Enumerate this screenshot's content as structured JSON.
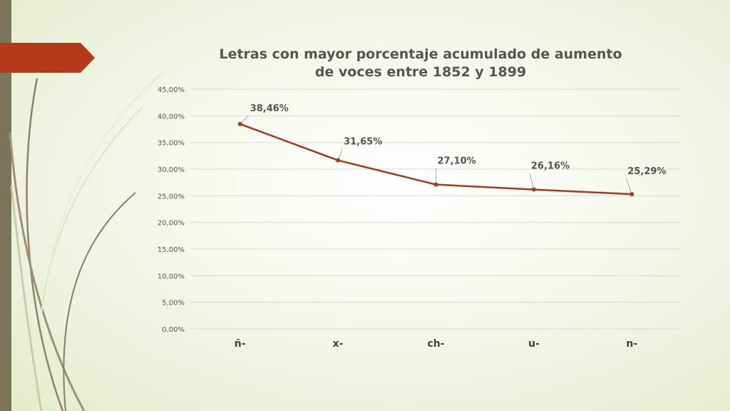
{
  "colors": {
    "line": "#a83a1c",
    "slide_accent": "#b03a1a",
    "left_bar": "#7a7558",
    "gridline": "#d9d9d9",
    "label": "#555555"
  },
  "slide": {
    "title": "Letras con mayor porcentaje acumulado de aumento de voces entre 1852 y 1899"
  },
  "chart_data": {
    "type": "line",
    "title": "Letras con mayor porcentaje acumulado de aumento de voces entre 1852 y 1899",
    "xlabel": "",
    "ylabel": "",
    "categories": [
      "ñ-",
      "x-",
      "ch-",
      "u-",
      "n-"
    ],
    "series": [
      {
        "values": [
          38.46,
          31.65,
          27.1,
          26.16,
          25.29
        ],
        "data_labels": [
          "38,46%",
          "31,65%",
          "27,10%",
          "26,16%",
          "25,29%"
        ]
      }
    ],
    "ylim": [
      0,
      45
    ],
    "y_ticks": [
      0,
      5,
      10,
      15,
      20,
      25,
      30,
      35,
      40,
      45
    ],
    "y_tick_labels": [
      "0,00%",
      "5,00%",
      "10,00%",
      "15,00%",
      "20,00%",
      "25,00%",
      "30,00%",
      "35,00%",
      "40,00%",
      "45,00%"
    ],
    "grid": true,
    "legend": "none"
  }
}
